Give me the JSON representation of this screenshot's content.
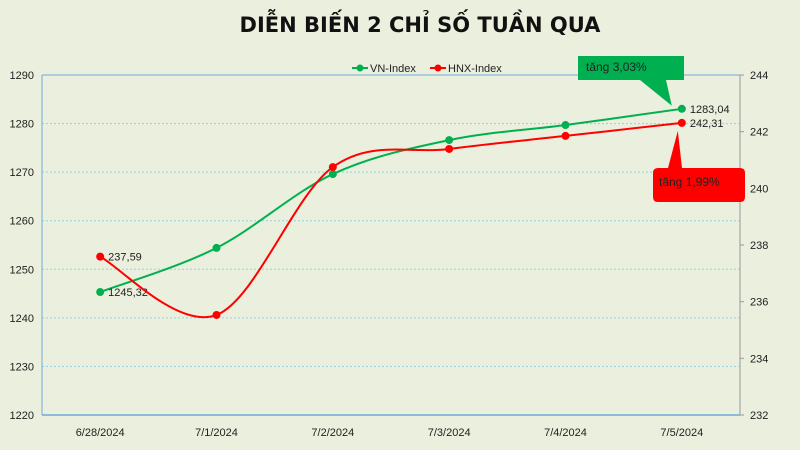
{
  "chart_data": {
    "type": "line",
    "title": "DIỄN BIẾN 2 CHỈ SỐ TUẦN QUA",
    "categories": [
      "6/28/2024",
      "7/1/2024",
      "7/2/2024",
      "7/3/2024",
      "7/4/2024",
      "7/5/2024"
    ],
    "y_left": {
      "range": [
        1220,
        1290
      ],
      "ticks": [
        "1220",
        "1230",
        "1240",
        "1250",
        "1260",
        "1270",
        "1280",
        "1290"
      ]
    },
    "y_right": {
      "range": [
        232,
        244
      ],
      "ticks": [
        "232",
        "234",
        "236",
        "238",
        "240",
        "242",
        "244"
      ]
    },
    "grid": true,
    "smooth": true,
    "legend_position": "top",
    "series": [
      {
        "name": "VN-Index",
        "axis": "left",
        "color": "#00b050",
        "values": [
          1245.32,
          1254.4,
          1269.6,
          1276.6,
          1279.7,
          1283.04
        ],
        "labels": {
          "0": "1245,32",
          "5": "1283,04"
        }
      },
      {
        "name": "HNX-Index",
        "axis": "right",
        "color": "#ff0000",
        "values": [
          237.59,
          235.53,
          240.75,
          241.39,
          241.85,
          242.31
        ],
        "labels": {
          "0": "237,59",
          "5": "242,31"
        }
      }
    ],
    "annotations": [
      {
        "text": "tăng 3,03%",
        "series": "VN-Index",
        "color": "#00b050"
      },
      {
        "text": "tăng 1,99%",
        "series": "HNX-Index",
        "color": "#ff0000"
      }
    ]
  }
}
